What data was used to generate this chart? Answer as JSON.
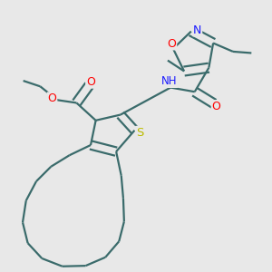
{
  "bg_color": "#e8e8e8",
  "bond_color": "#3a6b6b",
  "bond_lw": 1.6,
  "figsize": [
    3.0,
    3.0
  ],
  "dpi": 100,
  "colors": {
    "N": "#1a1aff",
    "O": "#ff0000",
    "S": "#bbbb00",
    "bg": "#e8e8e8"
  }
}
